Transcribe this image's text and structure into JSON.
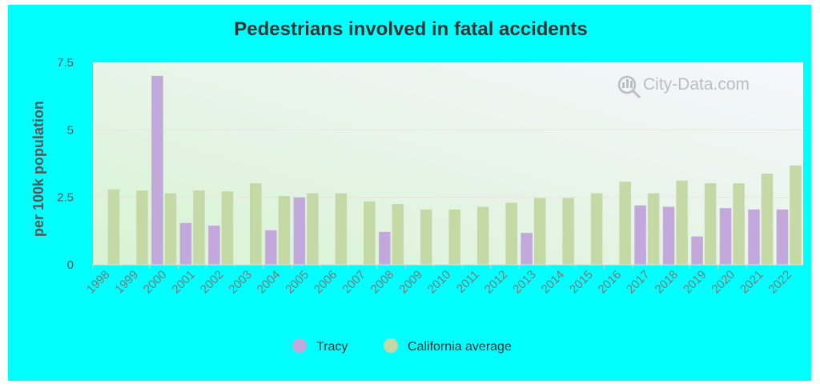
{
  "chart_data": {
    "type": "bar",
    "title": "Pedestrians involved in fatal accidents",
    "ylabel": "per 100k population",
    "xlabel": "",
    "ylim": [
      0,
      7.5
    ],
    "yticks": [
      0,
      2.5,
      5,
      7.5
    ],
    "ytick_labels": [
      "0",
      "2.5",
      "5",
      "7.5"
    ],
    "categories": [
      "1998",
      "1999",
      "2000",
      "2001",
      "2002",
      "2003",
      "2004",
      "2005",
      "2006",
      "2007",
      "2008",
      "2009",
      "2010",
      "2011",
      "2012",
      "2013",
      "2014",
      "2015",
      "2016",
      "2017",
      "2018",
      "2019",
      "2020",
      "2021",
      "2022"
    ],
    "series": [
      {
        "name": "Tracy",
        "color": "#c3a8dc",
        "values": [
          null,
          null,
          7.0,
          1.55,
          1.45,
          null,
          1.28,
          2.5,
          null,
          null,
          1.22,
          null,
          null,
          null,
          null,
          1.18,
          null,
          null,
          null,
          2.2,
          2.15,
          1.05,
          2.1,
          2.05,
          2.05
        ]
      },
      {
        "name": "California average",
        "color": "#c5d9a6",
        "values": [
          2.8,
          2.75,
          2.65,
          2.75,
          2.72,
          3.02,
          2.55,
          2.65,
          2.65,
          2.35,
          2.25,
          2.05,
          2.05,
          2.15,
          2.3,
          2.48,
          2.48,
          2.65,
          3.08,
          2.65,
          3.12,
          3.02,
          3.02,
          3.38,
          3.68
        ]
      }
    ],
    "legend_position": "bottom",
    "grid": true
  },
  "watermark": "City-Data.com",
  "colors": {
    "background": "#00ffff",
    "plot_gradient_top": "#f4f4fc",
    "plot_gradient_bottom": "#dcf4d6",
    "gridline": "#e4e8e0"
  }
}
